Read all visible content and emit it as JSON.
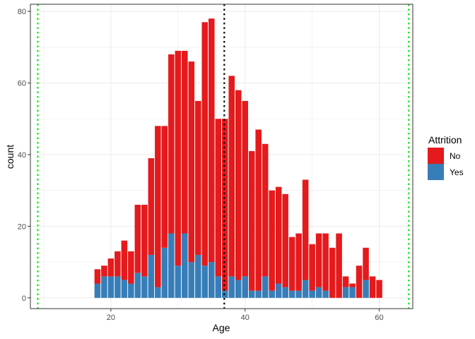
{
  "chart_data": {
    "type": "bar",
    "stacked": true,
    "xlabel": "Age",
    "ylabel": "count",
    "xlim": [
      8,
      65
    ],
    "ylim": [
      -3,
      82
    ],
    "xticks": [
      20,
      40,
      60
    ],
    "yticks": [
      0,
      20,
      40,
      60,
      80
    ],
    "grid": true,
    "legend": {
      "title": "Attrition",
      "placement": "right",
      "entries": [
        "No",
        "Yes"
      ]
    },
    "categories": [
      18,
      19,
      20,
      21,
      22,
      23,
      24,
      25,
      26,
      27,
      28,
      29,
      30,
      31,
      32,
      33,
      34,
      35,
      36,
      37,
      38,
      39,
      40,
      41,
      42,
      43,
      44,
      45,
      46,
      47,
      48,
      49,
      50,
      51,
      52,
      53,
      54,
      55,
      56,
      57,
      58,
      59,
      60
    ],
    "series": [
      {
        "name": "No",
        "color": "#e41a1c",
        "values": [
          4,
          3,
          5,
          7,
          11,
          9,
          19,
          20,
          27,
          45,
          34,
          50,
          60,
          51,
          56,
          43,
          68,
          68,
          44,
          48,
          56,
          53,
          49,
          39,
          45,
          37,
          28,
          27,
          26,
          15,
          16,
          28,
          13,
          15,
          16,
          14,
          18,
          3,
          1,
          9,
          9,
          6,
          5
        ]
      },
      {
        "name": "Yes",
        "color": "#377eb8",
        "values": [
          4,
          6,
          6,
          6,
          5,
          4,
          7,
          6,
          12,
          3,
          14,
          18,
          9,
          18,
          10,
          12,
          9,
          10,
          6,
          2,
          6,
          5,
          6,
          2,
          2,
          6,
          2,
          4,
          3,
          2,
          2,
          5,
          2,
          3,
          2,
          0,
          0,
          3,
          3,
          0,
          5,
          0,
          0
        ]
      }
    ],
    "reference_lines": [
      {
        "axis": "x",
        "value": 9.1,
        "color": "#00ee00",
        "style": "dotted"
      },
      {
        "axis": "x",
        "value": 36.9,
        "color": "#000000",
        "style": "dotted"
      },
      {
        "axis": "x",
        "value": 64.4,
        "color": "#00ee00",
        "style": "dotted"
      }
    ]
  }
}
